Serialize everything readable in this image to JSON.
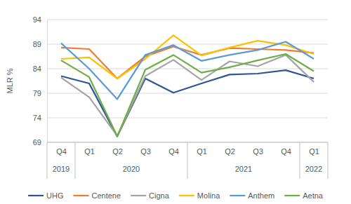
{
  "chart_data": {
    "type": "line",
    "y_label": "MLR %",
    "categories": [
      "Q4",
      "Q1",
      "Q2",
      "Q3",
      "Q4",
      "Q1",
      "Q2",
      "Q3",
      "Q4",
      "Q1"
    ],
    "x_groups": [
      {
        "label": "2019",
        "count": 1
      },
      {
        "label": "2020",
        "count": 4
      },
      {
        "label": "2021",
        "count": 4
      },
      {
        "label": "2022",
        "count": 1
      }
    ],
    "series": [
      {
        "name": "UHG",
        "color": "#2f5597",
        "values": [
          82.5,
          81.0,
          70.2,
          82.0,
          79.1,
          81.0,
          82.8,
          83.0,
          83.7,
          82.0
        ]
      },
      {
        "name": "Centene",
        "color": "#ed7d31",
        "values": [
          88.3,
          88.0,
          82.0,
          86.5,
          88.5,
          86.8,
          88.2,
          88.0,
          87.8,
          87.2
        ]
      },
      {
        "name": "Cigna",
        "color": "#a5a5a5",
        "values": [
          82.2,
          78.2,
          70.3,
          82.5,
          85.8,
          81.7,
          85.5,
          84.5,
          86.8,
          81.3
        ]
      },
      {
        "name": "Molina",
        "color": "#ffc000",
        "values": [
          86.0,
          86.3,
          82.0,
          86.0,
          90.8,
          86.7,
          88.3,
          89.7,
          88.8,
          87.0
        ]
      },
      {
        "name": "Anthem",
        "color": "#5b9bd5",
        "values": [
          89.2,
          84.0,
          77.8,
          86.8,
          88.8,
          85.6,
          86.8,
          87.8,
          89.5,
          86.0
        ]
      },
      {
        "name": "Aetna",
        "color": "#70ad47",
        "values": [
          85.7,
          82.3,
          70.2,
          83.8,
          86.8,
          83.2,
          84.3,
          85.7,
          87.0,
          83.5
        ]
      }
    ],
    "ylim": [
      69,
      94
    ],
    "yticks": [
      69,
      74,
      79,
      84,
      89,
      94
    ],
    "grid": true,
    "legend": "bottom"
  }
}
